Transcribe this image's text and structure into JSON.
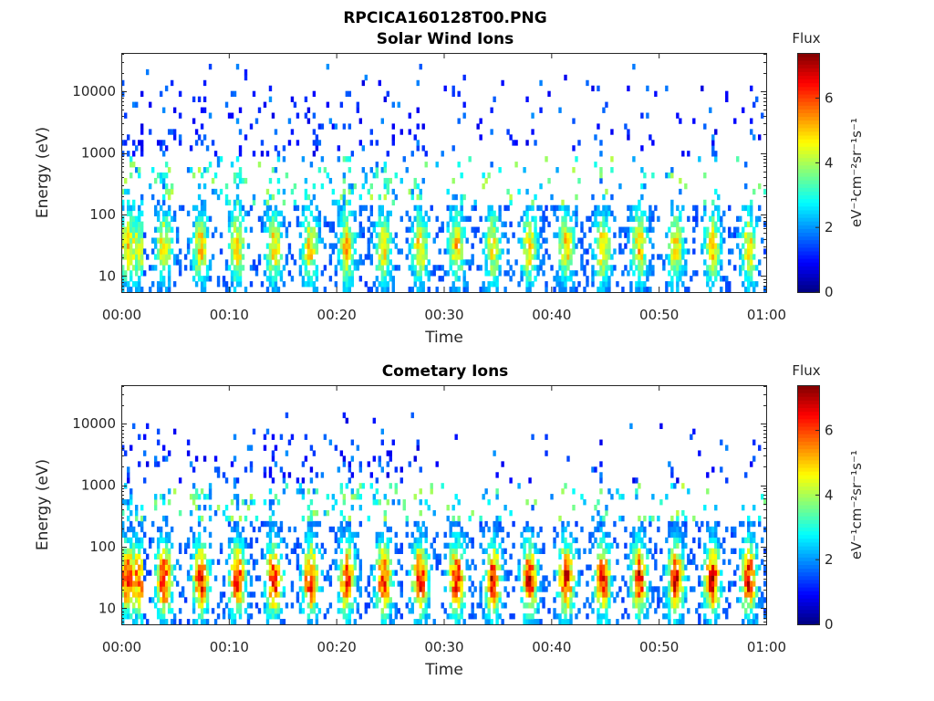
{
  "figure_title": "RPCICA160128T00.PNG",
  "chart_data": [
    {
      "type": "heatmap",
      "title": "Solar Wind Ions",
      "xlabel": "Time",
      "ylabel": "Energy (eV)",
      "x_ticks": [
        "00:00",
        "00:10",
        "00:20",
        "00:30",
        "00:40",
        "00:50",
        "01:00"
      ],
      "xlim_minutes": [
        0,
        60
      ],
      "y_scale": "log",
      "y_ticks": [
        "10",
        "100",
        "1000",
        "10000"
      ],
      "ylim": [
        5.5,
        42000
      ],
      "colorbar": {
        "title": "Flux",
        "label": "eV⁻¹cm⁻²sr⁻¹s⁻¹",
        "ticks": [
          "0",
          "2",
          "4",
          "6"
        ],
        "range": [
          0,
          7.4
        ],
        "colormap": "jet"
      },
      "pulse_period_minutes": 3.4,
      "dense_band_energy_eV": [
        5.5,
        150
      ],
      "peak_energy_eV": 30,
      "peak_flux": 5.0,
      "sparse_scatter_energy_eV": [
        150,
        30000
      ]
    },
    {
      "type": "heatmap",
      "title": "Cometary Ions",
      "xlabel": "Time",
      "ylabel": "Energy (eV)",
      "x_ticks": [
        "00:00",
        "00:10",
        "00:20",
        "00:30",
        "00:40",
        "00:50",
        "01:00"
      ],
      "xlim_minutes": [
        0,
        60
      ],
      "y_scale": "log",
      "y_ticks": [
        "10",
        "100",
        "1000",
        "10000"
      ],
      "ylim": [
        5.5,
        42000
      ],
      "colorbar": {
        "title": "Flux",
        "label": "eV⁻¹cm⁻²sr⁻¹s⁻¹",
        "ticks": [
          "0",
          "2",
          "4",
          "6"
        ],
        "range": [
          0,
          7.4
        ],
        "colormap": "jet"
      },
      "pulse_period_minutes": 3.4,
      "dense_band_energy_eV": [
        5.5,
        250
      ],
      "peak_energy_eV": 30,
      "peak_flux": 6.6,
      "sparse_scatter_energy_eV": [
        250,
        15000
      ]
    }
  ]
}
